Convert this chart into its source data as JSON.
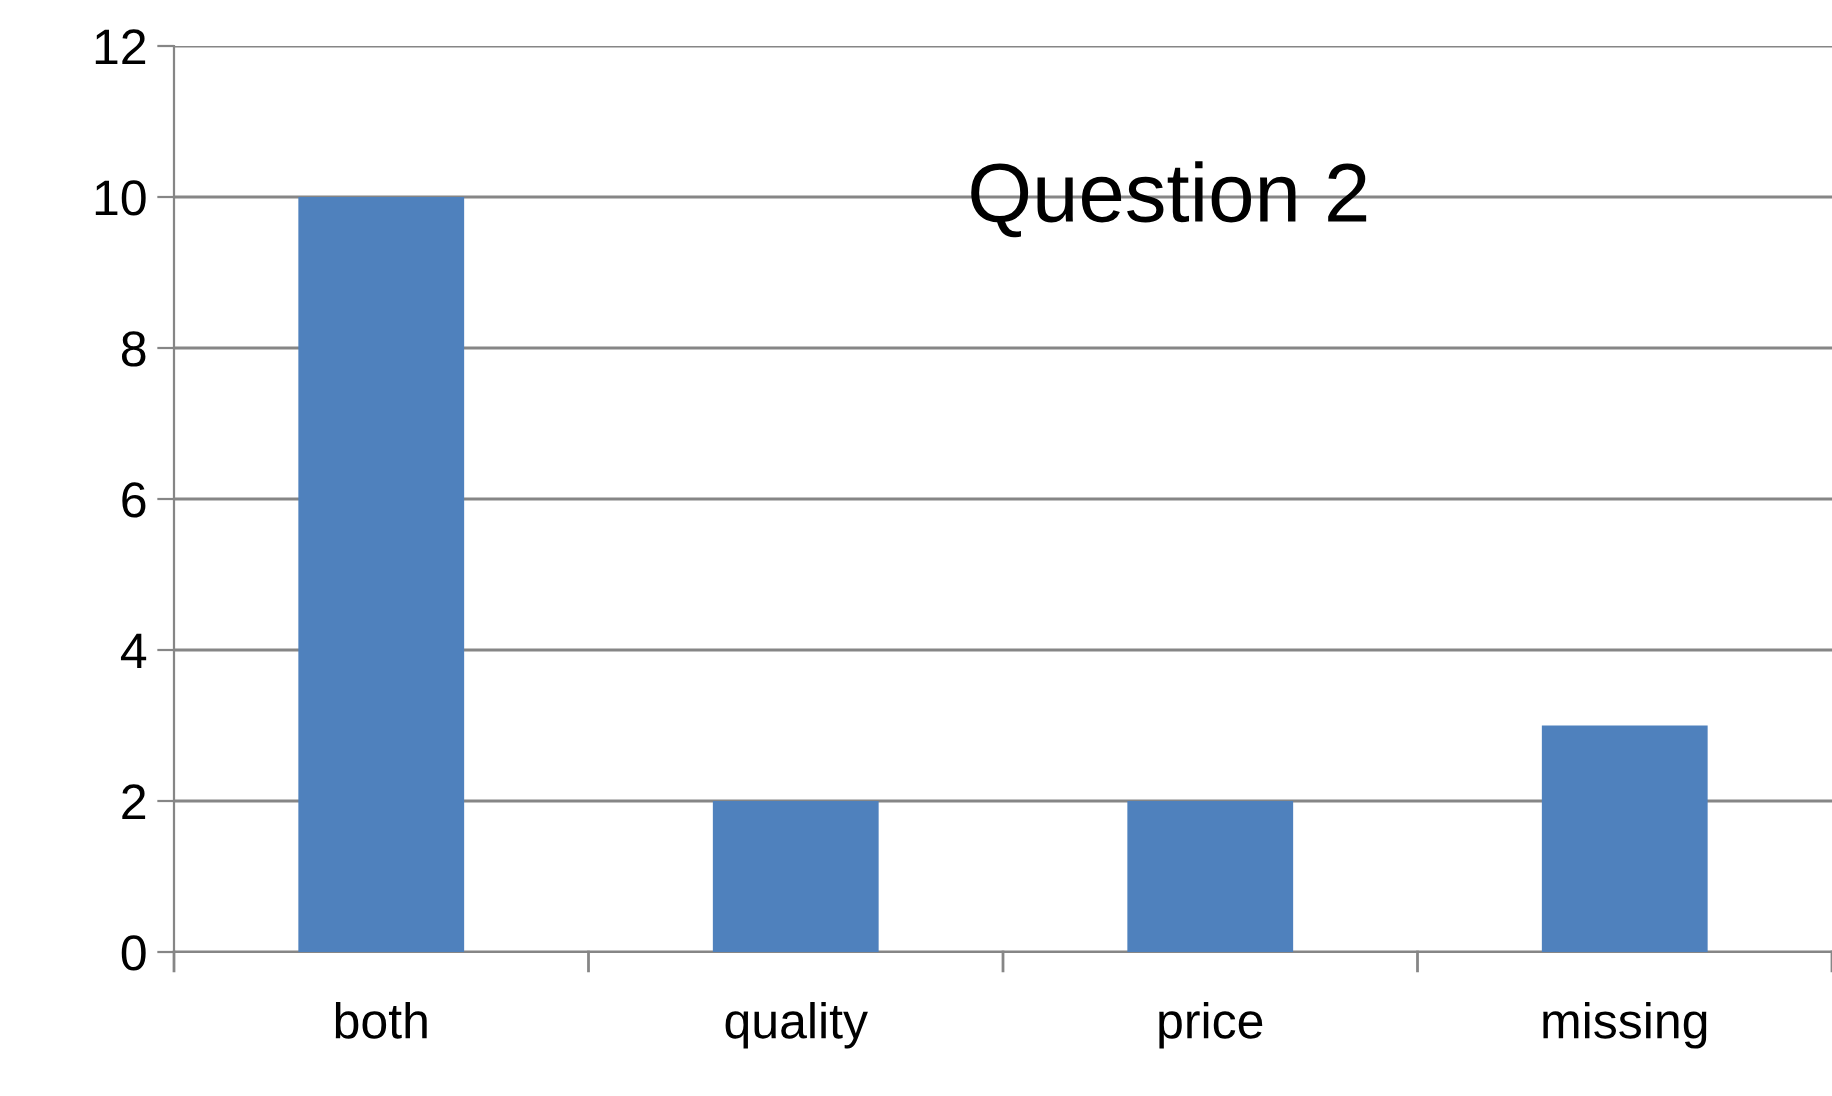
{
  "chart_data": {
    "type": "bar",
    "title": "Question 2",
    "categories": [
      "both",
      "quality",
      "price",
      "missing"
    ],
    "values": [
      10,
      2,
      2,
      3
    ],
    "color": "#4f81bd",
    "ylim": [
      0,
      12
    ],
    "yticks": [
      0,
      2,
      4,
      6,
      8,
      10,
      12
    ],
    "grid": "y"
  }
}
